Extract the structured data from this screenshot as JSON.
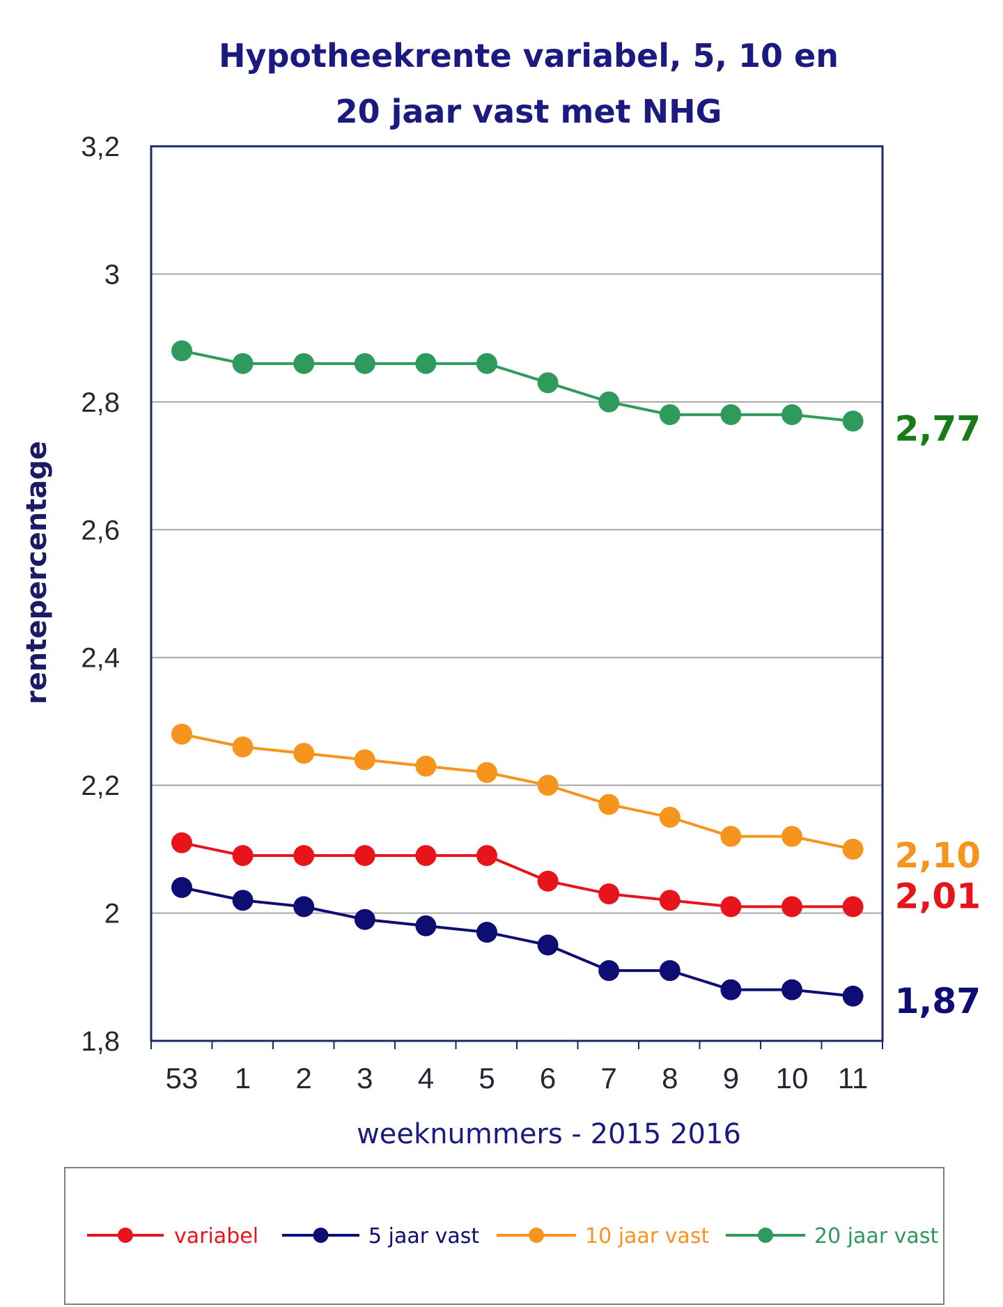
{
  "chart_data": {
    "type": "line",
    "title_lines": [
      "Hypotheekrente variabel, 5, 10 en",
      "20 jaar vast met NHG"
    ],
    "xlabel": "weeknummers - 2015 2016",
    "ylabel": "rentepercentage",
    "categories": [
      "53",
      "1",
      "2",
      "3",
      "4",
      "5",
      "6",
      "7",
      "8",
      "9",
      "10",
      "11"
    ],
    "ylim": [
      1.8,
      3.2
    ],
    "yticks": [
      1.8,
      2.0,
      2.2,
      2.4,
      2.6,
      2.8,
      3.0,
      3.2
    ],
    "ytick_labels": [
      "1,8",
      "2",
      "2,2",
      "2,4",
      "2,6",
      "2,8",
      "3",
      "3,2"
    ],
    "grid": true,
    "legend_position": "bottom",
    "series": [
      {
        "name": "variabel",
        "color": "#e8141c",
        "values": [
          2.11,
          2.09,
          2.09,
          2.09,
          2.09,
          2.09,
          2.05,
          2.03,
          2.02,
          2.01,
          2.01,
          2.01
        ],
        "end_label": "2,01"
      },
      {
        "name": "5 jaar vast",
        "color": "#0d0d73",
        "values": [
          2.04,
          2.02,
          2.01,
          1.99,
          1.98,
          1.97,
          1.95,
          1.91,
          1.91,
          1.88,
          1.88,
          1.87
        ],
        "end_label": "1,87"
      },
      {
        "name": "10 jaar vast",
        "color": "#f7941d",
        "values": [
          2.28,
          2.26,
          2.25,
          2.24,
          2.23,
          2.22,
          2.2,
          2.17,
          2.15,
          2.12,
          2.12,
          2.1
        ],
        "end_label": "2,10"
      },
      {
        "name": "20 jaar vast",
        "color": "#2e9a5c",
        "values": [
          2.88,
          2.86,
          2.86,
          2.86,
          2.86,
          2.86,
          2.83,
          2.8,
          2.78,
          2.78,
          2.78,
          2.77
        ],
        "end_label": "2,77"
      }
    ],
    "end_label_colors": {
      "variabel": "#e8141c",
      "5 jaar vast": "#0d0d73",
      "10 jaar vast": "#f7941d",
      "20 jaar vast": "#1a7a1a"
    }
  }
}
